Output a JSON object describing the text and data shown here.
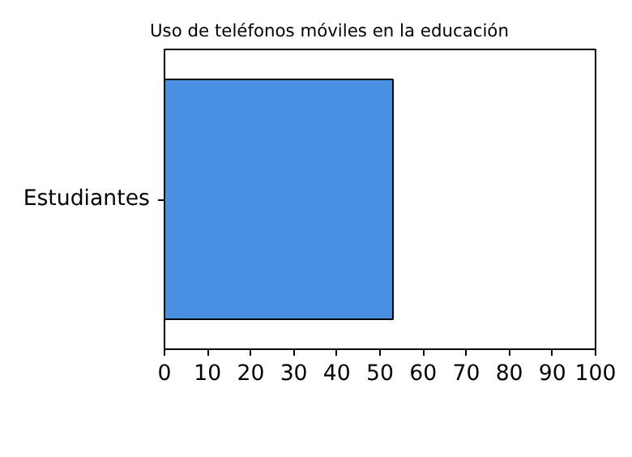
{
  "chart_data": {
    "type": "bar",
    "title": "Uso de teléfonos móviles en la educación",
    "orientation": "horizontal",
    "categories": [
      "Estudiantes"
    ],
    "values": [
      53
    ],
    "color": "#4a90e2",
    "xlim": [
      0,
      100
    ],
    "xticks": [
      0,
      10,
      20,
      30,
      40,
      50,
      60,
      70,
      80,
      90,
      100
    ],
    "grid": false
  }
}
